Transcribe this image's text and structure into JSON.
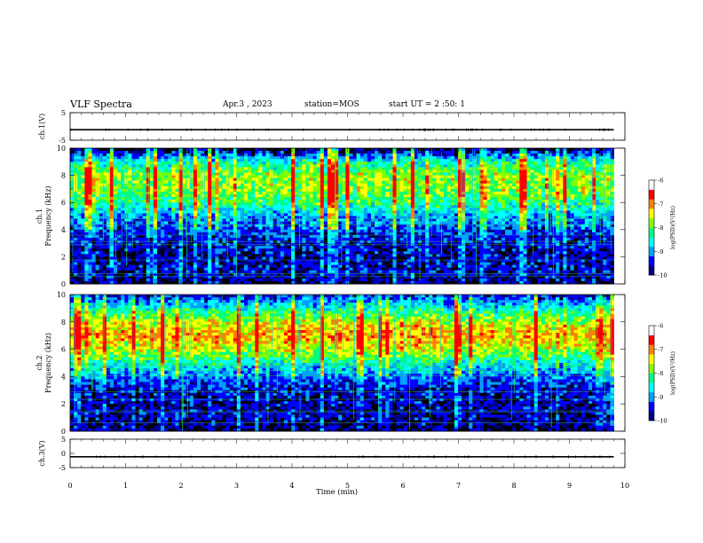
{
  "header": {
    "title": "VLF Spectra",
    "date": "Apr.3 , 2023",
    "station": "station=MOS",
    "start_ut": "start UT = 2 :50: 1"
  },
  "chart_data": [
    {
      "type": "line",
      "name": "ch1-waveform",
      "ylabel": "ch.1(V)",
      "ylim": [
        -5,
        5
      ],
      "yticks": [
        5,
        -5
      ],
      "x": [
        0,
        9.8
      ],
      "values": [
        -1.2,
        -1.2
      ]
    },
    {
      "type": "heatmap",
      "name": "ch1-spectrogram",
      "ylabel": "ch.1\nFrequency (kHz)",
      "ylabel_line1": "ch.1",
      "ylabel_line2": "Frequency (kHz)",
      "ylim": [
        0,
        10
      ],
      "yticks": [
        0,
        2,
        4,
        6,
        8,
        10
      ],
      "xlim": [
        0,
        10
      ],
      "data_xmax": 9.8,
      "intensity_profile_khz": [
        0,
        1,
        2,
        3,
        4,
        5,
        6,
        7,
        8,
        9,
        10
      ],
      "intensity_profile_level": [
        -9.8,
        -9.5,
        -9.6,
        -9.5,
        -9.2,
        -8.8,
        -8.0,
        -7.5,
        -7.5,
        -8.3,
        -10
      ],
      "colorbar": {
        "label": "log(PSD)(V²/Hz)",
        "range": [
          -10,
          -6
        ],
        "ticks": [
          "-6",
          "-7",
          "-8",
          "-9",
          "-10"
        ]
      }
    },
    {
      "type": "heatmap",
      "name": "ch2-spectrogram",
      "ylabel": "ch.2\nFrequency (kHz)",
      "ylabel_line1": "ch.2",
      "ylabel_line2": "Frequency (kHz)",
      "ylim": [
        0,
        10
      ],
      "yticks": [
        0,
        2,
        4,
        6,
        8,
        10
      ],
      "xlim": [
        0,
        10
      ],
      "data_xmax": 9.8,
      "intensity_profile_khz": [
        0,
        1,
        2,
        3,
        4,
        5,
        6,
        7,
        8,
        9,
        10
      ],
      "intensity_profile_level": [
        -9.8,
        -9.6,
        -9.6,
        -9.5,
        -9.0,
        -8.3,
        -7.3,
        -6.8,
        -7.3,
        -8.3,
        -9.5
      ],
      "colorbar": {
        "label": "log(PSD)(V²/Hz)",
        "range": [
          -10,
          -6
        ],
        "ticks": [
          "-6",
          "-7",
          "-8",
          "-9",
          "-10"
        ]
      }
    },
    {
      "type": "line",
      "name": "ch3-waveform",
      "ylabel": "ch.3(V)",
      "ylim": [
        -5,
        5
      ],
      "yticks": [
        5,
        0,
        -5
      ],
      "x": [
        0,
        9.8
      ],
      "values": [
        -1.2,
        -1.2
      ]
    }
  ],
  "xaxis": {
    "label": "Time (min)",
    "ticks": [
      "0",
      "1",
      "2",
      "3",
      "4",
      "5",
      "6",
      "7",
      "8",
      "9",
      "10"
    ],
    "range": [
      0,
      10
    ]
  },
  "colors": {
    "colormap": [
      "#000080",
      "#0000ff",
      "#00a0ff",
      "#00ffff",
      "#00ff80",
      "#80ff00",
      "#ffff00",
      "#ff8000",
      "#ff0000",
      "#ffffff"
    ],
    "trace": "#000000"
  }
}
